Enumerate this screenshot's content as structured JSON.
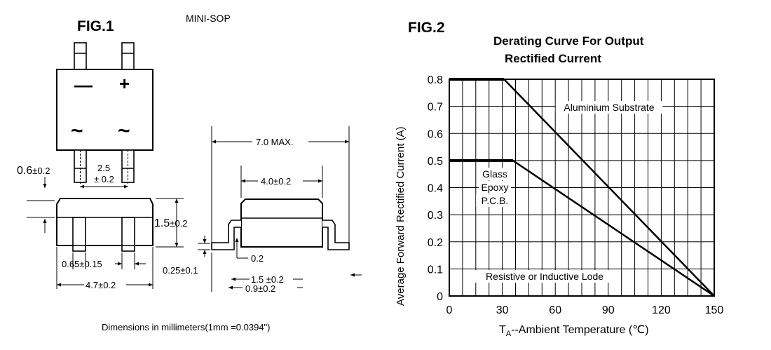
{
  "fig1": {
    "label": "FIG.1",
    "package": "MINI-SOP",
    "pin_minus": "—",
    "pin_plus": "+",
    "pin_ac1": "~",
    "pin_ac2": "~",
    "dims": {
      "lead_height": "0.6",
      "lead_height_tol": "±0.2",
      "lead_pitch": "2.5",
      "lead_pitch_tol": "± 0.2",
      "body_height": "1.5",
      "body_height_tol": "±0.2",
      "lead_width": "0.65",
      "lead_width_tol": "±0.15",
      "body_width": "4.7",
      "body_width_tol": "±0.2",
      "overall_max": "7.0 MAX.",
      "body_length": "4.0",
      "body_length_tol": "±0.2",
      "standoff": "0.25",
      "standoff_tol": "±0.1",
      "lead_thickness": "0.2",
      "foot_length": "1.5",
      "foot_length_tol": "±0.2",
      "foot_contact": "0.9",
      "foot_contact_tol": "±0.2"
    },
    "footnote": "Dimensions in millimeters(1mm =0.0394\")"
  },
  "fig2": {
    "label": "FIG.2"
  },
  "chart_data": {
    "type": "line",
    "title": "Derating Curve For Output Rectified Current",
    "title_line1": "Derating Curve For Output",
    "title_line2": "Rectified Current",
    "xlabel_main": "T",
    "xlabel_sub": "A",
    "xlabel_rest": "--Ambient Temperature (℃)",
    "ylabel": "Average Forward Rectified Current (A)",
    "xlim": [
      0,
      150
    ],
    "ylim": [
      0,
      0.8
    ],
    "x_ticks": [
      0,
      30,
      60,
      90,
      120,
      150
    ],
    "x_tick_labels": [
      "0",
      "30",
      "60",
      "90",
      "120",
      "150"
    ],
    "y_ticks": [
      0,
      0.1,
      0.2,
      0.3,
      0.4,
      0.5,
      0.6,
      0.7,
      0.8
    ],
    "y_tick_labels": [
      "0",
      "0.1",
      "0.2",
      "0.3",
      "0.4",
      "0.5",
      "0.6",
      "0.7",
      "0.8"
    ],
    "grid": true,
    "series": [
      {
        "name": "Aluminium Substrate",
        "x": [
          0,
          31,
          150
        ],
        "y": [
          0.8,
          0.8,
          0
        ]
      },
      {
        "name": "Glass Epoxy P.C.B.",
        "x": [
          0,
          36,
          150
        ],
        "y": [
          0.5,
          0.5,
          0
        ]
      }
    ],
    "annotations": {
      "aluminium": "Aluminium Substrate",
      "glass_l1": "Glass",
      "glass_l2": "Epoxy",
      "glass_l3": "P.C.B.",
      "load": "Resistive or Inductive Lode"
    }
  }
}
